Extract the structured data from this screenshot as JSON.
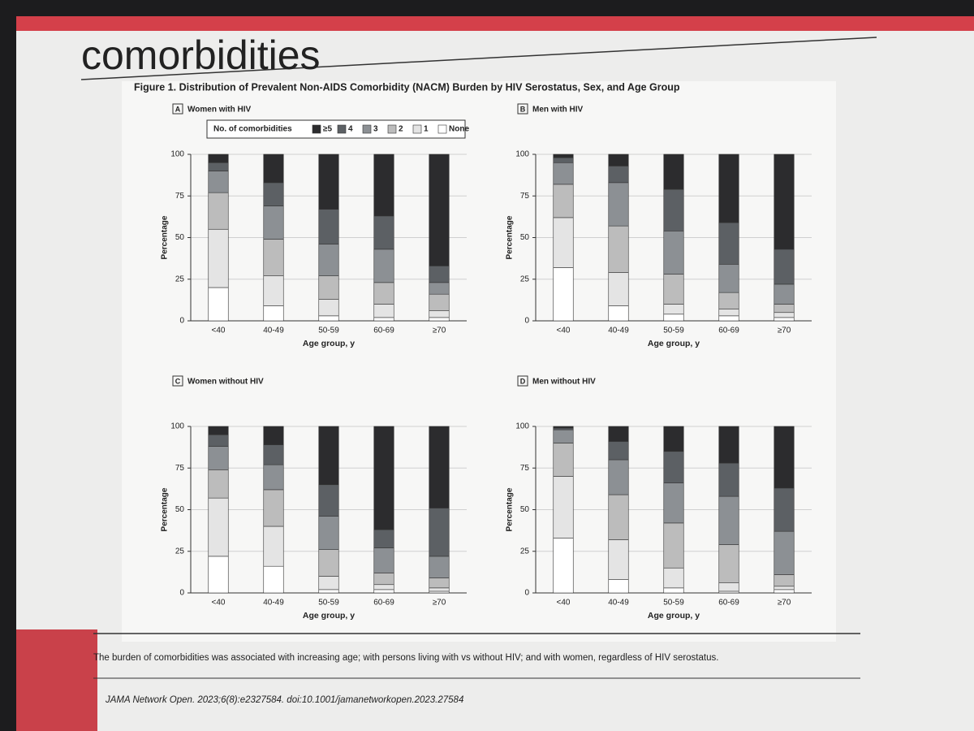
{
  "slide": {
    "title": "comorbidities",
    "figure_title": "Figure 1. Distribution of Prevalent Non-AIDS Comorbidity (NACM) Burden by HIV Serostatus, Sex, and Age Group",
    "caption": "The burden of comorbidities was associated with increasing age; with persons living with vs without HIV; and with women, regardless of HIV serostatus.",
    "citation": "JAMA Network Open. 2023;6(8):e2327584. doi:10.1001/jamanetworkopen.2023.27584"
  },
  "chart_data": [
    {
      "type": "bar",
      "stacked": true,
      "panel": "A",
      "title": "Women with HIV",
      "legend_title": "No. of comorbidities",
      "xlabel": "Age group, y",
      "ylabel": "Percentage",
      "categories": [
        "<40",
        "40-49",
        "50-59",
        "60-69",
        "≥70"
      ],
      "ylim": [
        0,
        100
      ],
      "yticks": [
        0,
        25,
        50,
        75,
        100
      ],
      "grid": true,
      "series": [
        {
          "name": "None",
          "color": "#ffffff",
          "values": [
            20,
            9,
            3,
            2,
            2
          ]
        },
        {
          "name": "1",
          "color": "#e4e4e4",
          "values": [
            35,
            18,
            10,
            8,
            4
          ]
        },
        {
          "name": "2",
          "color": "#bcbcbc",
          "values": [
            22,
            22,
            14,
            13,
            10
          ]
        },
        {
          "name": "3",
          "color": "#8c9094",
          "values": [
            13,
            20,
            19,
            20,
            7
          ]
        },
        {
          "name": "4",
          "color": "#5c6064",
          "values": [
            5,
            14,
            21,
            20,
            10
          ]
        },
        {
          "name": "≥5",
          "color": "#2c2c2e",
          "values": [
            5,
            17,
            33,
            37,
            67
          ]
        }
      ]
    },
    {
      "type": "bar",
      "stacked": true,
      "panel": "B",
      "title": "Men with HIV",
      "xlabel": "Age group, y",
      "ylabel": "Percentage",
      "categories": [
        "<40",
        "40-49",
        "50-59",
        "60-69",
        "≥70"
      ],
      "ylim": [
        0,
        100
      ],
      "yticks": [
        0,
        25,
        50,
        75,
        100
      ],
      "grid": true,
      "series": [
        {
          "color": "#ffffff",
          "values": [
            32,
            9,
            4,
            3,
            2
          ]
        },
        {
          "color": "#e4e4e4",
          "values": [
            30,
            20,
            6,
            4,
            3
          ]
        },
        {
          "color": "#bcbcbc",
          "values": [
            20,
            28,
            18,
            10,
            5
          ]
        },
        {
          "color": "#8c9094",
          "values": [
            13,
            26,
            26,
            17,
            12
          ]
        },
        {
          "color": "#5c6064",
          "values": [
            3,
            10,
            25,
            25,
            21
          ]
        },
        {
          "color": "#2c2c2e",
          "values": [
            2,
            7,
            21,
            41,
            57
          ]
        }
      ]
    },
    {
      "type": "bar",
      "stacked": true,
      "panel": "C",
      "title": "Women without HIV",
      "xlabel": "Age group, y",
      "ylabel": "Percentage",
      "categories": [
        "<40",
        "40-49",
        "50-59",
        "60-69",
        "≥70"
      ],
      "ylim": [
        0,
        100
      ],
      "yticks": [
        0,
        25,
        50,
        75,
        100
      ],
      "grid": true,
      "series": [
        {
          "color": "#ffffff",
          "values": [
            22,
            16,
            2,
            2,
            1
          ]
        },
        {
          "color": "#e4e4e4",
          "values": [
            35,
            24,
            8,
            3,
            2
          ]
        },
        {
          "color": "#bcbcbc",
          "values": [
            17,
            22,
            16,
            7,
            6
          ]
        },
        {
          "color": "#8c9094",
          "values": [
            14,
            15,
            20,
            15,
            13
          ]
        },
        {
          "color": "#5c6064",
          "values": [
            7,
            12,
            19,
            11,
            29
          ]
        },
        {
          "color": "#2c2c2e",
          "values": [
            5,
            11,
            35,
            62,
            49
          ]
        }
      ]
    },
    {
      "type": "bar",
      "stacked": true,
      "panel": "D",
      "title": "Men without HIV",
      "xlabel": "Age group, y",
      "ylabel": "Percentage",
      "categories": [
        "<40",
        "40-49",
        "50-59",
        "60-69",
        "≥70"
      ],
      "ylim": [
        0,
        100
      ],
      "yticks": [
        0,
        25,
        50,
        75,
        100
      ],
      "grid": true,
      "series": [
        {
          "color": "#ffffff",
          "values": [
            33,
            8,
            3,
            1,
            2
          ]
        },
        {
          "color": "#e4e4e4",
          "values": [
            37,
            24,
            12,
            5,
            2
          ]
        },
        {
          "color": "#bcbcbc",
          "values": [
            20,
            27,
            27,
            23,
            7
          ]
        },
        {
          "color": "#8c9094",
          "values": [
            8,
            21,
            24,
            29,
            26
          ]
        },
        {
          "color": "#5c6064",
          "values": [
            1,
            11,
            19,
            20,
            26
          ]
        },
        {
          "color": "#2c2c2e",
          "values": [
            1,
            9,
            15,
            22,
            37
          ]
        }
      ]
    }
  ]
}
